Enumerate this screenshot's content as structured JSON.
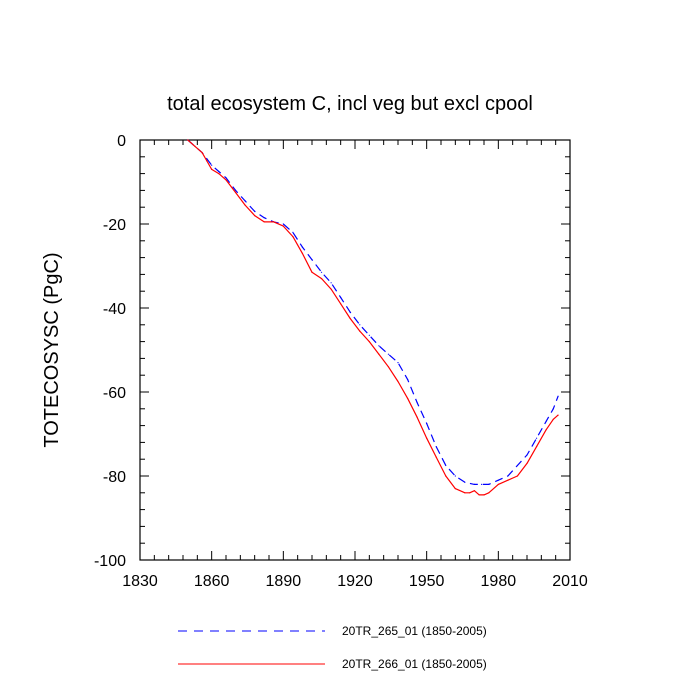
{
  "chart_data": {
    "type": "line",
    "title": "total ecosystem C, incl veg but excl cpool",
    "xlabel": "",
    "ylabel": "TOTECOSYSC  (PgC)",
    "xlim": [
      1830,
      2010
    ],
    "ylim": [
      -100,
      0
    ],
    "xticks": [
      1830,
      1860,
      1890,
      1920,
      1950,
      1980,
      2010
    ],
    "yticks": [
      0,
      -20,
      -40,
      -60,
      -80,
      -100
    ],
    "xtick_labels": [
      "1830",
      "1860",
      "1890",
      "1920",
      "1950",
      "1980",
      "2010"
    ],
    "ytick_labels": [
      "0",
      "-20",
      "-40",
      "-60",
      "-80",
      "-100"
    ],
    "grid": false,
    "legend_position": "bottom",
    "series": [
      {
        "name": "20TR_265_01 (1850-2005)",
        "color": "#0000ff",
        "style": "dashed",
        "x": [
          1850,
          1853,
          1856,
          1858,
          1860,
          1863,
          1866,
          1870,
          1874,
          1878,
          1882,
          1886,
          1890,
          1894,
          1898,
          1902,
          1906,
          1910,
          1914,
          1918,
          1922,
          1926,
          1930,
          1934,
          1938,
          1942,
          1946,
          1950,
          1954,
          1958,
          1962,
          1966,
          1970,
          1973,
          1976,
          1980,
          1984,
          1988,
          1992,
          1996,
          2000,
          2003,
          2005
        ],
        "y": [
          0,
          -1.5,
          -3,
          -4.5,
          -6,
          -7.5,
          -9,
          -12,
          -14.5,
          -17,
          -18.5,
          -19.5,
          -20,
          -22,
          -25.5,
          -28.5,
          -31.5,
          -34,
          -37.5,
          -41,
          -44,
          -46.5,
          -49,
          -51,
          -53,
          -57,
          -62.5,
          -67.5,
          -73,
          -77.5,
          -80,
          -81.5,
          -82,
          -82,
          -82,
          -81,
          -80,
          -77.5,
          -75,
          -71,
          -67,
          -64,
          -61
        ]
      },
      {
        "name": "20TR_266_01 (1850-2005)",
        "color": "#ff0000",
        "style": "solid",
        "x": [
          1850,
          1853,
          1856,
          1858,
          1860,
          1863,
          1866,
          1870,
          1874,
          1878,
          1882,
          1886,
          1890,
          1894,
          1898,
          1902,
          1906,
          1910,
          1914,
          1918,
          1922,
          1926,
          1930,
          1934,
          1938,
          1942,
          1946,
          1950,
          1954,
          1958,
          1962,
          1966,
          1968,
          1970,
          1972,
          1974,
          1976,
          1980,
          1984,
          1988,
          1992,
          1996,
          2000,
          2003,
          2005
        ],
        "y": [
          0,
          -1.5,
          -3,
          -5,
          -7,
          -8,
          -9.5,
          -12.5,
          -15.5,
          -18,
          -19.5,
          -19.5,
          -20.5,
          -23,
          -27,
          -31.5,
          -33,
          -35.5,
          -39,
          -42.5,
          -45.5,
          -48,
          -51,
          -54,
          -57.5,
          -61.5,
          -66,
          -71,
          -75.5,
          -80,
          -83,
          -84,
          -84,
          -83.5,
          -84.5,
          -84.5,
          -84,
          -82,
          -81,
          -80,
          -77,
          -73,
          -69,
          -66.5,
          -65.5
        ]
      }
    ]
  }
}
